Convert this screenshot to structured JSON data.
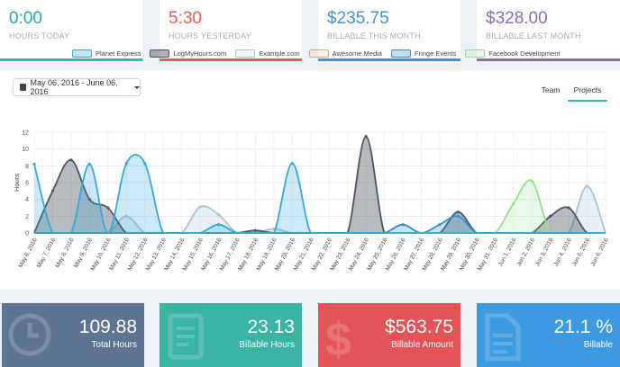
{
  "kpis": [
    {
      "value": "0:00",
      "label": "HOURS TODAY",
      "color": "#2aa9a6",
      "border": "#2fb9b4"
    },
    {
      "value": "5:30",
      "label": "HOURS YESTERDAY",
      "color": "#e35d5b",
      "border": "#e35d5b"
    },
    {
      "value": "$235.75",
      "label": "BILLABLE THIS MONTH",
      "color": "#4a8fd0",
      "border": "#4a8fd0"
    },
    {
      "value": "$328.00",
      "label": "BILLABLE LAST MONTH",
      "color": "#8a6fa8",
      "border": "#8a6fa8"
    }
  ],
  "toolbar": {
    "date_range": "May 06, 2016 - June 06, 2016"
  },
  "tabs": [
    {
      "label": "Team"
    },
    {
      "label": "Projects"
    }
  ],
  "stats": [
    {
      "value": "109.88",
      "label": "Total Hours",
      "color": "#5e7592"
    },
    {
      "value": "23.13",
      "label": "Billable Hours",
      "color": "#3ab5a4"
    },
    {
      "value": "$563.75",
      "label": "Billable Amount",
      "color": "#e25458"
    },
    {
      "value": "21.1 %",
      "label": "Billable",
      "color": "#3c9ae0"
    }
  ],
  "chart_data": {
    "type": "area",
    "ylabel": "Hours",
    "ylim": [
      0,
      12
    ],
    "yticks": [
      "0",
      "2",
      "4",
      "6",
      "8",
      "10",
      "12"
    ],
    "categories": [
      "May 6, 2016",
      "May 7, 2016",
      "May 8, 2016",
      "May 9, 2016",
      "May 10, 2016",
      "May 11, 2016",
      "May 12, 2016",
      "May 13, 2016",
      "May 14, 2016",
      "May 15, 2016",
      "May 16, 2016",
      "May 17, 2016",
      "May 18, 2016",
      "May 19, 2016",
      "May 20, 2016",
      "May 21, 2016",
      "May 22, 2016",
      "May 23, 2016",
      "May 24, 2016",
      "May 25, 2016",
      "May 26, 2016",
      "May 27, 2016",
      "May 28, 2016",
      "May 29, 2016",
      "May 30, 2016",
      "May 31, 2016",
      "Jun 1, 2016",
      "Jun 2, 2016",
      "Jun 3, 2016",
      "Jun 4, 2016",
      "Jun 5, 2016",
      "Jun 6, 2016"
    ],
    "series": [
      {
        "name": "Planet Express",
        "color": "#32a9d8",
        "fill": "rgba(50,169,216,0.25)",
        "values": [
          8.2,
          0,
          0,
          8.2,
          0,
          8.3,
          8.3,
          0,
          0,
          0,
          1.0,
          0,
          0,
          0,
          8.3,
          0,
          0,
          0,
          0,
          0,
          0,
          0,
          0,
          0,
          0,
          0,
          0,
          0,
          0,
          0,
          0,
          0
        ]
      },
      {
        "name": "LogMyHours.com",
        "color": "#4a5561",
        "fill": "rgba(74,85,97,0.4)",
        "values": [
          0,
          5.0,
          8.7,
          4.0,
          3.0,
          0,
          0,
          0,
          0,
          0,
          0,
          0,
          0.3,
          0,
          0,
          0,
          0,
          0,
          11.5,
          0,
          0,
          0,
          0,
          2.5,
          0,
          0,
          0,
          0,
          2.0,
          3.0,
          0,
          0
        ]
      },
      {
        "name": "Example.com",
        "color": "#a8c4d6",
        "fill": "rgba(168,196,214,0.25)",
        "values": [
          0,
          0,
          0,
          0,
          0,
          2.0,
          0,
          0,
          0,
          3.1,
          2.2,
          0,
          0,
          0.5,
          0,
          0,
          0,
          0,
          0,
          0,
          0,
          0,
          0,
          0,
          0,
          0,
          0,
          0,
          0,
          0,
          5.6,
          0
        ]
      },
      {
        "name": "Awesome Media",
        "color": "#f0a06a",
        "fill": "rgba(240,160,106,0.2)",
        "values": [
          0,
          0,
          0,
          0,
          0,
          0,
          0,
          0,
          0,
          0,
          0,
          0,
          0,
          0,
          0,
          0,
          0,
          0,
          0,
          0,
          0,
          0,
          0,
          0,
          0,
          0,
          0,
          0,
          0,
          0,
          0,
          0
        ]
      },
      {
        "name": "Fringe Events",
        "color": "#2f8fcf",
        "fill": "rgba(47,143,207,0.25)",
        "values": [
          0,
          0,
          0,
          0,
          0,
          0,
          0,
          0,
          0,
          0,
          0,
          0,
          0,
          0,
          0,
          0,
          0,
          0,
          0,
          0,
          1.0,
          0,
          1.0,
          2.0,
          0,
          0,
          0,
          0,
          0,
          0,
          0,
          0
        ]
      },
      {
        "name": "Facebook Development",
        "color": "#8fe08a",
        "fill": "rgba(143,224,138,0.2)",
        "values": [
          0,
          0,
          0,
          0,
          0,
          0,
          0,
          0,
          0,
          0,
          0,
          0,
          0,
          0,
          0,
          0,
          0,
          0,
          0,
          0,
          0,
          0,
          0,
          0,
          0,
          0,
          3.5,
          6.2,
          0,
          0,
          0,
          0
        ]
      }
    ]
  }
}
